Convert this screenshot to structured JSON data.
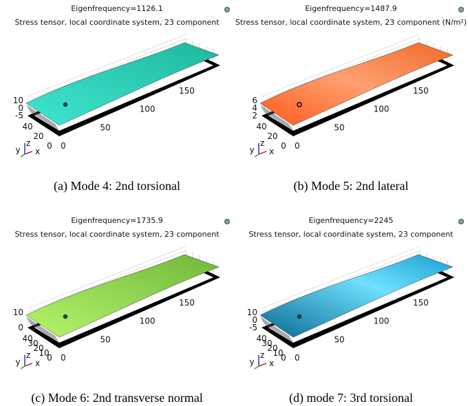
{
  "panels": [
    {
      "title": "Eigenfrequency=1126.1",
      "subtitle": "Stress tensor, local coordinate system, 23 component",
      "z_ticks": [
        "10",
        "0",
        "-5"
      ],
      "y_ticks": [
        "40",
        "20",
        "0"
      ],
      "x_ticks": [
        "0",
        "50",
        "100",
        "150"
      ],
      "axes": [
        "y",
        "z",
        "x"
      ],
      "caption": "(a) Mode 4: 2nd torsional"
    },
    {
      "title": "Eigenfrequency=1487.9",
      "subtitle": "Stress tensor, local coordinate system, 23 component (N/m²)",
      "z_ticks": [
        "6",
        "4",
        "2"
      ],
      "y_ticks": [
        "40",
        "20",
        "0"
      ],
      "x_ticks": [
        "0",
        "50",
        "100",
        "150"
      ],
      "axes": [
        "y",
        "z",
        "x"
      ],
      "caption": "(b) Mode 5: 2nd lateral"
    },
    {
      "title": "Eigenfrequency=1735.9",
      "subtitle": "Stress tensor, local coordinate system, 23 component",
      "z_ticks": [
        "10",
        "0"
      ],
      "y_ticks": [
        "40",
        "30",
        "20",
        "10",
        "0"
      ],
      "x_ticks": [
        "0",
        "50",
        "100",
        "150"
      ],
      "axes": [
        "y",
        "z",
        "x"
      ],
      "caption": "(c) Mode 6: 2nd transverse normal"
    },
    {
      "title": "Eigenfrequency=2245",
      "subtitle": "Stress tensor, local coordinate system, 23 component",
      "z_ticks": [
        "10",
        "0",
        "-5"
      ],
      "y_ticks": [
        "40",
        "30",
        "20",
        "10",
        "0"
      ],
      "x_ticks": [
        "0",
        "50",
        "100",
        "150"
      ],
      "axes": [
        "y",
        "z",
        "x"
      ],
      "caption": "(d) mode 7: 3rd torsional"
    }
  ]
}
